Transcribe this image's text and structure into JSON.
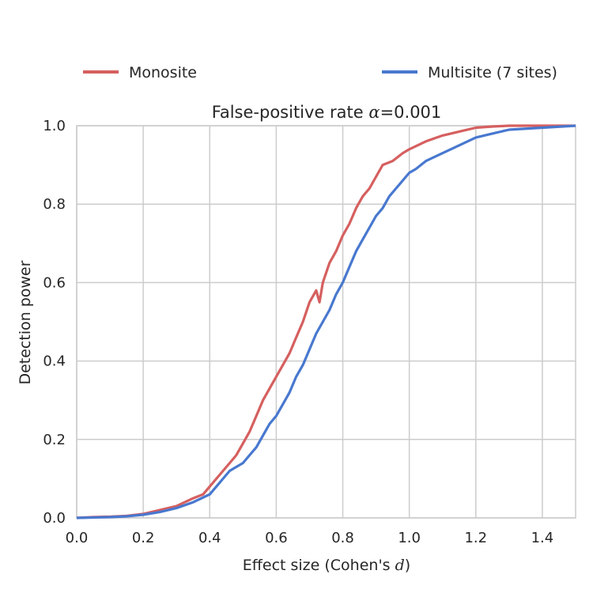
{
  "chart_data": {
    "type": "line",
    "title_prefix": "False-positive rate ",
    "title_symbol": "α",
    "title_suffix": "=0.001",
    "xlabel_prefix": "Effect size (Cohen's ",
    "xlabel_symbol": "d",
    "xlabel_suffix": ")",
    "ylabel": "Detection power",
    "xlim": [
      0.0,
      1.5
    ],
    "ylim": [
      0.0,
      1.0
    ],
    "xticks": [
      "0.0",
      "0.2",
      "0.4",
      "0.6",
      "0.8",
      "1.0",
      "1.2",
      "1.4"
    ],
    "yticks": [
      "0.0",
      "0.2",
      "0.4",
      "0.6",
      "0.8",
      "1.0"
    ],
    "grid": true,
    "legend_placement": "top, above plot",
    "series": [
      {
        "name": "Monosite",
        "color": "#d65f5f",
        "x": [
          0.0,
          0.05,
          0.1,
          0.15,
          0.2,
          0.25,
          0.3,
          0.35,
          0.38,
          0.4,
          0.42,
          0.44,
          0.46,
          0.48,
          0.5,
          0.52,
          0.54,
          0.56,
          0.58,
          0.6,
          0.62,
          0.64,
          0.66,
          0.68,
          0.7,
          0.72,
          0.73,
          0.74,
          0.76,
          0.78,
          0.8,
          0.82,
          0.84,
          0.86,
          0.88,
          0.9,
          0.92,
          0.95,
          0.98,
          1.0,
          1.05,
          1.1,
          1.15,
          1.2,
          1.25,
          1.3,
          1.4,
          1.5
        ],
        "values": [
          0.0,
          0.002,
          0.003,
          0.005,
          0.01,
          0.02,
          0.03,
          0.05,
          0.06,
          0.08,
          0.1,
          0.12,
          0.14,
          0.16,
          0.19,
          0.22,
          0.26,
          0.3,
          0.33,
          0.36,
          0.39,
          0.42,
          0.46,
          0.5,
          0.55,
          0.58,
          0.55,
          0.6,
          0.65,
          0.68,
          0.72,
          0.75,
          0.79,
          0.82,
          0.84,
          0.87,
          0.9,
          0.91,
          0.93,
          0.94,
          0.96,
          0.975,
          0.985,
          0.995,
          0.998,
          1.0,
          1.0,
          1.0
        ]
      },
      {
        "name": "Multisite (7 sites)",
        "color": "#4878cf",
        "x": [
          0.0,
          0.05,
          0.1,
          0.15,
          0.2,
          0.25,
          0.3,
          0.35,
          0.4,
          0.42,
          0.44,
          0.46,
          0.48,
          0.5,
          0.52,
          0.54,
          0.56,
          0.58,
          0.6,
          0.62,
          0.64,
          0.66,
          0.68,
          0.7,
          0.72,
          0.74,
          0.76,
          0.78,
          0.8,
          0.82,
          0.84,
          0.86,
          0.88,
          0.9,
          0.92,
          0.94,
          0.96,
          0.98,
          1.0,
          1.02,
          1.05,
          1.1,
          1.15,
          1.2,
          1.25,
          1.3,
          1.4,
          1.5
        ],
        "values": [
          0.0,
          0.001,
          0.002,
          0.004,
          0.008,
          0.015,
          0.025,
          0.04,
          0.06,
          0.08,
          0.1,
          0.12,
          0.13,
          0.14,
          0.16,
          0.18,
          0.21,
          0.24,
          0.26,
          0.29,
          0.32,
          0.36,
          0.39,
          0.43,
          0.47,
          0.5,
          0.53,
          0.57,
          0.6,
          0.64,
          0.68,
          0.71,
          0.74,
          0.77,
          0.79,
          0.82,
          0.84,
          0.86,
          0.88,
          0.89,
          0.91,
          0.93,
          0.95,
          0.97,
          0.98,
          0.99,
          0.995,
          1.0
        ]
      }
    ]
  }
}
